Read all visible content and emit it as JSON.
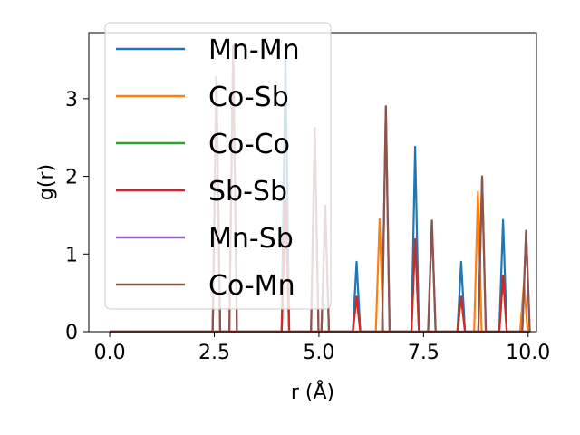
{
  "chart_data": {
    "type": "line",
    "xlabel": "r (Å)",
    "ylabel": "g(r)",
    "xlim": [
      -0.5,
      10.2
    ],
    "ylim": [
      0,
      3.85
    ],
    "xticks": [
      0.0,
      2.5,
      5.0,
      7.5,
      10.0
    ],
    "xtick_labels": [
      "0.0",
      "2.5",
      "5.0",
      "7.5",
      "10.0"
    ],
    "yticks": [
      0,
      1,
      2,
      3
    ],
    "ytick_labels": [
      "0",
      "1",
      "2",
      "3"
    ],
    "grid": false,
    "legend_position": "upper-left",
    "series": [
      {
        "name": "Mn-Mn",
        "color": "#1f77b4",
        "peaks": [
          [
            4.2,
            3.55
          ],
          [
            5.9,
            0.9
          ],
          [
            7.3,
            2.38
          ],
          [
            8.4,
            0.9
          ],
          [
            9.4,
            1.44
          ]
        ]
      },
      {
        "name": "Co-Sb",
        "color": "#ff7f0e",
        "peaks": [
          [
            2.55,
            3.28
          ],
          [
            6.45,
            1.45
          ],
          [
            8.8,
            1.8
          ],
          [
            9.9,
            0.62
          ]
        ]
      },
      {
        "name": "Co-Co",
        "color": "#2ca02c",
        "peaks": [
          [
            4.2,
            1.7
          ],
          [
            5.9,
            0.45
          ],
          [
            7.3,
            1.19
          ],
          [
            8.4,
            0.45
          ],
          [
            9.4,
            0.72
          ]
        ]
      },
      {
        "name": "Sb-Sb",
        "color": "#d62728",
        "peaks": [
          [
            4.2,
            1.7
          ],
          [
            5.9,
            0.45
          ],
          [
            7.3,
            1.19
          ],
          [
            8.4,
            0.45
          ],
          [
            9.4,
            0.72
          ]
        ]
      },
      {
        "name": "Mn-Sb",
        "color": "#9467bd",
        "peaks": [
          [
            2.55,
            3.28
          ],
          [
            2.95,
            3.68
          ],
          [
            4.9,
            2.62
          ],
          [
            5.15,
            1.62
          ],
          [
            6.6,
            2.9
          ],
          [
            7.7,
            1.43
          ],
          [
            8.9,
            2.0
          ],
          [
            9.95,
            1.3
          ]
        ]
      },
      {
        "name": "Co-Mn",
        "color": "#8c564b",
        "peaks": [
          [
            2.55,
            3.28
          ],
          [
            2.95,
            3.68
          ],
          [
            4.9,
            2.62
          ],
          [
            5.15,
            1.62
          ],
          [
            6.6,
            2.9
          ],
          [
            7.7,
            1.43
          ],
          [
            8.9,
            2.0
          ],
          [
            9.95,
            1.3
          ]
        ]
      }
    ]
  }
}
